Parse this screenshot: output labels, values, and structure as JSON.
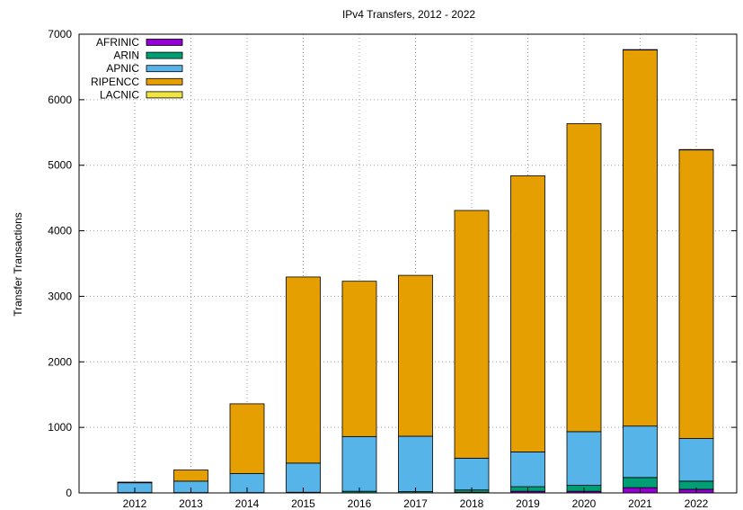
{
  "chart_data": {
    "type": "bar",
    "stacked": true,
    "title": "IPv4 Transfers, 2012 - 2022",
    "xlabel": "",
    "ylabel": "Transfer Transactions",
    "ylim": [
      0,
      7000
    ],
    "yticks": [
      "0",
      "1000",
      "2000",
      "3000",
      "4000",
      "5000",
      "6000",
      "7000"
    ],
    "grid": true,
    "legend_position": "top-left",
    "categories": [
      "2012",
      "2013",
      "2014",
      "2015",
      "2016",
      "2017",
      "2018",
      "2019",
      "2020",
      "2021",
      "2022"
    ],
    "series": [
      {
        "name": "AFRINIC",
        "color": "#9400d3",
        "values": [
          0,
          0,
          0,
          0,
          0,
          0,
          10,
          25,
          25,
          80,
          55
        ]
      },
      {
        "name": "ARIN",
        "color": "#009e73",
        "values": [
          5,
          5,
          5,
          10,
          25,
          20,
          35,
          70,
          90,
          155,
          125
        ]
      },
      {
        "name": "APNIC",
        "color": "#56b4e9",
        "values": [
          150,
          175,
          290,
          445,
          835,
          845,
          485,
          530,
          820,
          785,
          650
        ]
      },
      {
        "name": "RIPENCC",
        "color": "#e69f00",
        "values": [
          10,
          170,
          1065,
          2840,
          2370,
          2455,
          3780,
          4215,
          4700,
          5740,
          4405
        ]
      },
      {
        "name": "LACNIC",
        "color": "#f0e442",
        "values": [
          0,
          0,
          0,
          0,
          0,
          0,
          0,
          0,
          0,
          5,
          5
        ]
      }
    ]
  }
}
